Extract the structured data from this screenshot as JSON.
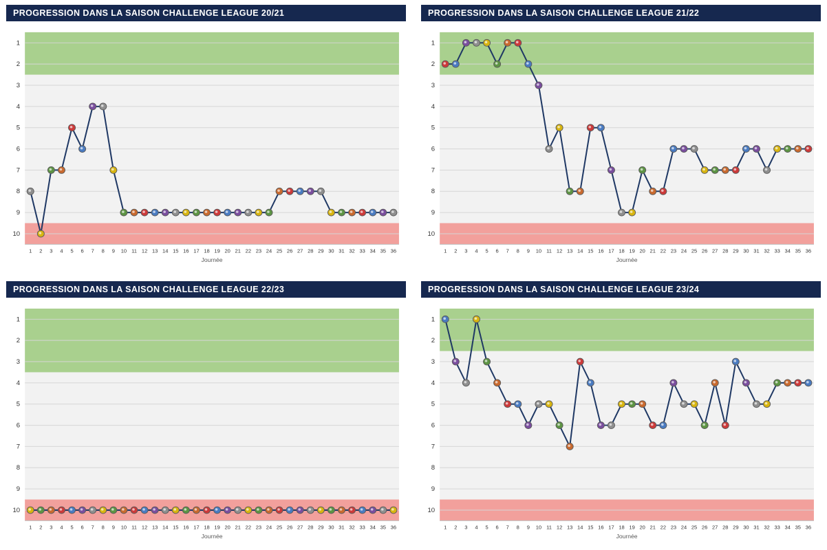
{
  "colors": {
    "header_bg": "#16284f",
    "header_text": "#ffffff",
    "line": "#1f3864",
    "green_zone": "#a9d08e",
    "red_zone": "#f2a09c",
    "plot_bg": "#f2f2f2",
    "grid_line": "#d6d6d6",
    "axis_text": "#333333",
    "xlabel_text": "#595959",
    "marker_stroke": "#5a5a5a"
  },
  "marker_palette": [
    "#8f8f8f",
    "#cc3a3a",
    "#d8b511",
    "#4a7bc1",
    "#5d9444",
    "#7a4e9e",
    "#c96a2f"
  ],
  "matchdays": [
    1,
    2,
    3,
    4,
    5,
    6,
    7,
    8,
    9,
    10,
    11,
    12,
    13,
    14,
    15,
    16,
    17,
    18,
    19,
    20,
    21,
    22,
    23,
    24,
    25,
    26,
    27,
    28,
    29,
    30,
    31,
    32,
    33,
    34,
    35,
    36
  ],
  "y_ticks": [
    1,
    2,
    3,
    4,
    5,
    6,
    7,
    8,
    9,
    10
  ],
  "chart_data": [
    {
      "type": "line",
      "title": "PROGRESSION DANS LA SAISON CHALLENGE LEAGUE 20/21",
      "xlabel": "Journée",
      "ylabel": "",
      "y_axis": {
        "min": 1,
        "max": 10,
        "inverted": true
      },
      "green_zone": [
        1,
        2
      ],
      "red_zone": [
        10,
        10
      ],
      "values": [
        8,
        10,
        7,
        7,
        5,
        6,
        4,
        4,
        7,
        9,
        9,
        9,
        9,
        9,
        9,
        9,
        9,
        9,
        9,
        9,
        9,
        9,
        9,
        9,
        8,
        8,
        8,
        8,
        8,
        9,
        9,
        9,
        9,
        9,
        9,
        9
      ]
    },
    {
      "type": "line",
      "title": "PROGRESSION DANS LA SAISON CHALLENGE LEAGUE 21/22",
      "xlabel": "Journée",
      "ylabel": "",
      "y_axis": {
        "min": 1,
        "max": 10,
        "inverted": true
      },
      "green_zone": [
        1,
        2
      ],
      "red_zone": [
        10,
        10
      ],
      "values": [
        2,
        2,
        1,
        1,
        1,
        2,
        1,
        1,
        2,
        3,
        6,
        5,
        8,
        8,
        5,
        5,
        7,
        9,
        9,
        7,
        8,
        8,
        6,
        6,
        6,
        7,
        7,
        7,
        7,
        6,
        6,
        7,
        6,
        6,
        6,
        6
      ]
    },
    {
      "type": "line",
      "title": "PROGRESSION DANS LA SAISON CHALLENGE LEAGUE 22/23",
      "xlabel": "Journée",
      "ylabel": "",
      "y_axis": {
        "min": 1,
        "max": 10,
        "inverted": true
      },
      "green_zone": [
        1,
        3
      ],
      "red_zone": [
        10,
        10
      ],
      "values": [
        10,
        10,
        10,
        10,
        10,
        10,
        10,
        10,
        10,
        10,
        10,
        10,
        10,
        10,
        10,
        10,
        10,
        10,
        10,
        10,
        10,
        10,
        10,
        10,
        10,
        10,
        10,
        10,
        10,
        10,
        10,
        10,
        10,
        10,
        10,
        10
      ]
    },
    {
      "type": "line",
      "title": "PROGRESSION DANS LA SAISON CHALLENGE LEAGUE 23/24",
      "xlabel": "Journée",
      "ylabel": "",
      "y_axis": {
        "min": 1,
        "max": 10,
        "inverted": true
      },
      "green_zone": [
        1,
        2
      ],
      "red_zone": [
        10,
        10
      ],
      "values": [
        1,
        3,
        4,
        1,
        3,
        4,
        5,
        5,
        6,
        5,
        5,
        6,
        7,
        3,
        4,
        6,
        6,
        5,
        5,
        5,
        6,
        6,
        4,
        5,
        5,
        6,
        4,
        6,
        3,
        4,
        5,
        5,
        4,
        4,
        4,
        4
      ]
    }
  ]
}
